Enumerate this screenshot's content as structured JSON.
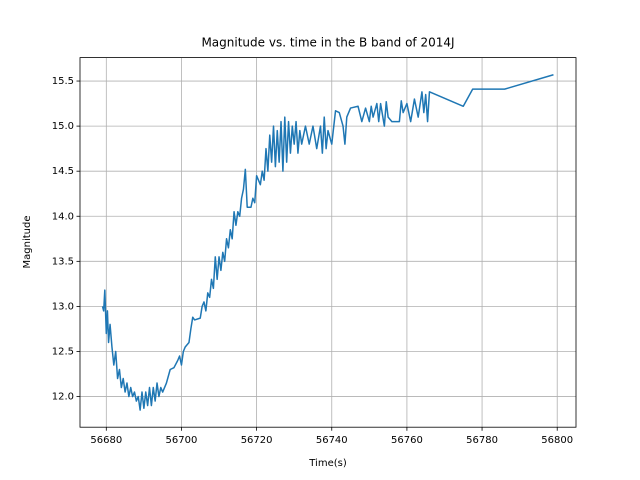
{
  "chart_data": {
    "type": "line",
    "title": "Magnitude vs. time in the B band of 2014J",
    "x_label": "Time(s)",
    "y_label": "Magnitude",
    "grid": true,
    "xlim": [
      56673,
      56805
    ],
    "ylim": [
      11.66,
      15.76
    ],
    "xticks": [
      56680,
      56700,
      56720,
      56740,
      56760,
      56780,
      56800
    ],
    "yticks": [
      {
        "value": 12.0,
        "label": "12.0"
      },
      {
        "value": 12.5,
        "label": "12.5"
      },
      {
        "value": 13.0,
        "label": "13.0"
      },
      {
        "value": 13.5,
        "label": "13.5"
      },
      {
        "value": 14.0,
        "label": "14.0"
      },
      {
        "value": 14.5,
        "label": "14.5"
      },
      {
        "value": 15.0,
        "label": "15.0"
      },
      {
        "value": 15.5,
        "label": "15.5"
      }
    ],
    "series": [
      {
        "color": "#1f77b4",
        "x": [
          56679,
          56679.3,
          56679.6,
          56680,
          56680.3,
          56680.6,
          56681,
          56681.5,
          56682,
          56682.5,
          56683,
          56683.5,
          56684,
          56684.5,
          56685,
          56685.5,
          56686,
          56686.5,
          56687,
          56687.5,
          56688,
          56688.5,
          56689,
          56689.5,
          56690,
          56690.5,
          56691,
          56691.5,
          56692,
          56692.5,
          56693,
          56693.5,
          56694,
          56694.5,
          56695,
          56696,
          56697,
          56698,
          56699,
          56699.5,
          56700,
          56700.5,
          56701,
          56702,
          56702.5,
          56703,
          56703.5,
          56705,
          56705.5,
          56706,
          56706.5,
          56707,
          56707.5,
          56708,
          56708.5,
          56709,
          56709.5,
          56710,
          56710.5,
          56711,
          56711.5,
          56712,
          56712.5,
          56713,
          56713.5,
          56714,
          56714.5,
          56715,
          56715.5,
          56716,
          56716.5,
          56717,
          56717.5,
          56718.5,
          56719,
          56719.5,
          56720,
          56721,
          56721.5,
          56722,
          56722.5,
          56723,
          56723.5,
          56724,
          56724.5,
          56725,
          56725.5,
          56726,
          56726.5,
          56727,
          56727.5,
          56728,
          56728.5,
          56729,
          56729.5,
          56730,
          56730.5,
          56731,
          56731.5,
          56732,
          56733,
          56734,
          56735,
          56736,
          56737,
          56737.5,
          56738,
          56738.5,
          56739,
          56740,
          56741,
          56742,
          56743,
          56743.5,
          56744,
          56745,
          56747,
          56748,
          56749,
          56750,
          56750.5,
          56751,
          56752,
          56752.5,
          56753,
          56754,
          56754.5,
          56755,
          56756,
          56757,
          56758,
          56758.5,
          56759,
          56760,
          56761,
          56762,
          56763,
          56764,
          56764.5,
          56765,
          56765.5,
          56766,
          56775,
          56777.5,
          56786,
          56799
        ],
        "values": [
          13.0,
          12.95,
          13.18,
          12.7,
          12.95,
          12.6,
          12.8,
          12.55,
          12.35,
          12.5,
          12.2,
          12.3,
          12.1,
          12.2,
          12.05,
          12.15,
          12.0,
          12.1,
          12.0,
          12.05,
          11.95,
          12.0,
          11.85,
          12.05,
          11.87,
          12.05,
          11.9,
          12.1,
          11.9,
          12.1,
          11.95,
          12.15,
          12.0,
          12.1,
          12.05,
          12.15,
          12.3,
          12.32,
          12.4,
          12.45,
          12.35,
          12.5,
          12.55,
          12.6,
          12.75,
          12.88,
          12.85,
          12.87,
          13.0,
          13.05,
          12.95,
          13.15,
          13.1,
          13.3,
          13.2,
          13.55,
          13.3,
          13.55,
          13.4,
          13.6,
          13.5,
          13.75,
          13.65,
          13.85,
          13.75,
          14.05,
          13.9,
          14.05,
          14.0,
          14.2,
          14.3,
          14.52,
          14.1,
          14.1,
          14.2,
          14.15,
          14.45,
          14.35,
          14.5,
          14.4,
          14.75,
          14.5,
          14.9,
          14.6,
          15.0,
          14.55,
          14.95,
          14.6,
          15.05,
          14.5,
          15.1,
          14.6,
          15.05,
          14.7,
          15.0,
          14.8,
          15.05,
          14.7,
          14.95,
          14.8,
          15.0,
          14.8,
          15.0,
          14.75,
          15.0,
          14.7,
          15.1,
          14.75,
          14.95,
          14.8,
          15.17,
          15.15,
          15.0,
          14.8,
          15.1,
          15.2,
          15.22,
          15.05,
          15.2,
          15.05,
          15.22,
          15.1,
          15.25,
          15.05,
          15.25,
          15.0,
          15.27,
          15.1,
          15.05,
          15.05,
          15.05,
          15.28,
          15.15,
          15.25,
          15.05,
          15.3,
          15.1,
          15.38,
          15.15,
          15.35,
          15.05,
          15.38,
          15.22,
          15.41,
          15.41,
          15.57
        ]
      }
    ]
  }
}
